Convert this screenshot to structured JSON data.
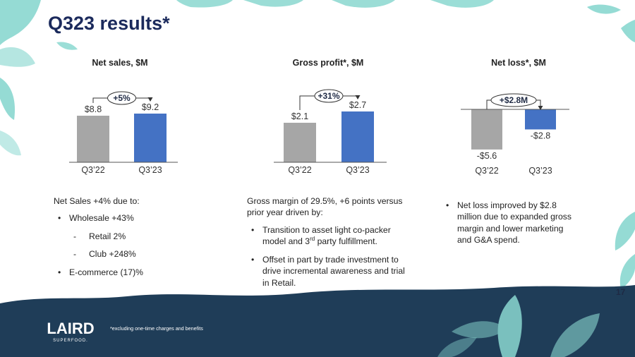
{
  "slide": {
    "title": "Q323 results*",
    "page_number": "17",
    "footnote": "*excluding one-time charges and benefits",
    "logo": {
      "text": "LAIRD",
      "subtext": "SUPERFOOD."
    }
  },
  "colors": {
    "title": "#1b2a5c",
    "bar_prior": "#a6a6a6",
    "bar_current": "#4472c4",
    "bottom_band": "#1f3d58",
    "leaf": "#8ad8d0"
  },
  "chart_data": [
    {
      "type": "bar",
      "title": "Net sales, $M",
      "categories": [
        "Q3’22",
        "Q3’23"
      ],
      "values": [
        8.8,
        9.2
      ],
      "value_labels": [
        "$8.8",
        "$9.2"
      ],
      "ylim": [
        0,
        12
      ],
      "annotation": "+5%",
      "xlabel": "",
      "ylabel": "",
      "grid": false,
      "legend": "none"
    },
    {
      "type": "bar",
      "title": "Gross profit*, $M",
      "categories": [
        "Q3’22",
        "Q3’23"
      ],
      "values": [
        2.1,
        2.7
      ],
      "value_labels": [
        "$2.1",
        "$2.7"
      ],
      "ylim": [
        0,
        3.6
      ],
      "annotation": "+31%",
      "xlabel": "",
      "ylabel": "",
      "grid": false,
      "legend": "none"
    },
    {
      "type": "bar",
      "title": "Net loss*, $M",
      "categories": [
        "Q3’22",
        "Q3’23"
      ],
      "values": [
        -5.6,
        -2.8
      ],
      "value_labels": [
        "-$5.6",
        "-$2.8"
      ],
      "ylim": [
        -6.2,
        0
      ],
      "annotation": "+$2.8M",
      "xlabel": "",
      "ylabel": "",
      "grid": false,
      "legend": "none"
    }
  ],
  "texts": {
    "net_sales": {
      "lead": "Net Sales +4% due to:",
      "items": [
        {
          "level": 1,
          "text": "Wholesale +43%"
        },
        {
          "level": 2,
          "text": "Retail 2%"
        },
        {
          "level": 2,
          "text": "Club +248%"
        },
        {
          "level": 1,
          "text": "E-commerce (17)%"
        }
      ]
    },
    "gross_profit": {
      "lead": "Gross margin of 29.5%, +6 points versus prior year driven by:",
      "items": [
        {
          "level": 1,
          "text_before": "Transition to asset light co-packer model and 3",
          "sup": "rd",
          "text_after": " party fulfillment."
        },
        {
          "level": 1,
          "text": "Offset in part by trade investment to drive incremental awareness and trial in Retail."
        }
      ]
    },
    "net_loss": {
      "items": [
        {
          "level": 1,
          "text": "Net loss improved by $2.8 million due to expanded gross margin and lower marketing and G&A spend."
        }
      ]
    }
  }
}
